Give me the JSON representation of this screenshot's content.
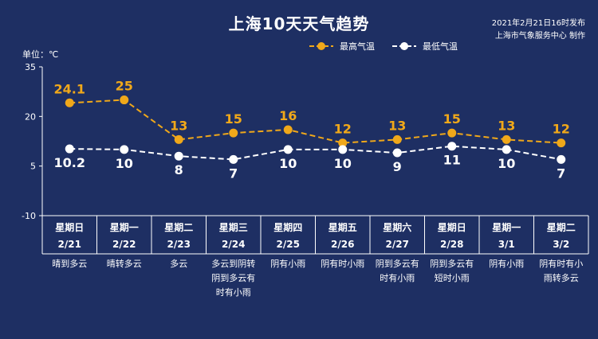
{
  "header": {
    "title": "上海10天天气趋势",
    "publish_time": "2021年2月21日16时发布",
    "publisher": "上海市气象服务中心 制作",
    "unit_label": "单位：℃"
  },
  "colors": {
    "background": "#1e2f63",
    "high": "#f0a81a",
    "low": "#ffffff",
    "axis": "#ffffff"
  },
  "chart_data": {
    "type": "line",
    "title": "上海10天天气趋势",
    "ylabel": "单位：℃",
    "ylim": [
      -10,
      35
    ],
    "yticks": [
      "-10",
      "5",
      "20",
      "35"
    ],
    "legend_position": "top-right",
    "categories": [
      {
        "weekday": "星期日",
        "date": "2/21",
        "weather": [
          "晴到多云"
        ]
      },
      {
        "weekday": "星期一",
        "date": "2/22",
        "weather": [
          "晴转多云"
        ]
      },
      {
        "weekday": "星期二",
        "date": "2/23",
        "weather": [
          "多云"
        ]
      },
      {
        "weekday": "星期三",
        "date": "2/24",
        "weather": [
          "多云到阴转",
          "阴到多云有",
          "时有小雨"
        ]
      },
      {
        "weekday": "星期四",
        "date": "2/25",
        "weather": [
          "阴有小雨"
        ]
      },
      {
        "weekday": "星期五",
        "date": "2/26",
        "weather": [
          "阴有时小雨"
        ]
      },
      {
        "weekday": "星期六",
        "date": "2/27",
        "weather": [
          "阴到多云有",
          "时有小雨"
        ]
      },
      {
        "weekday": "星期日",
        "date": "2/28",
        "weather": [
          "阴到多云有",
          "短时小雨"
        ]
      },
      {
        "weekday": "星期一",
        "date": "3/1",
        "weather": [
          "阴有小雨"
        ]
      },
      {
        "weekday": "星期二",
        "date": "3/2",
        "weather": [
          "阴有时有小",
          "雨转多云"
        ]
      }
    ],
    "series": [
      {
        "name": "最高气温",
        "values": [
          24.1,
          25,
          13,
          15,
          16,
          12,
          13,
          15,
          13,
          12
        ],
        "labels": [
          "24.1",
          "25",
          "13",
          "15",
          "16",
          "12",
          "13",
          "15",
          "13",
          "12"
        ]
      },
      {
        "name": "最低气温",
        "values": [
          10.2,
          10,
          8,
          7,
          10,
          10,
          9,
          11,
          10,
          7
        ],
        "labels": [
          "10.2",
          "10",
          "8",
          "7",
          "10",
          "10",
          "9",
          "11",
          "10",
          "7"
        ]
      }
    ]
  }
}
